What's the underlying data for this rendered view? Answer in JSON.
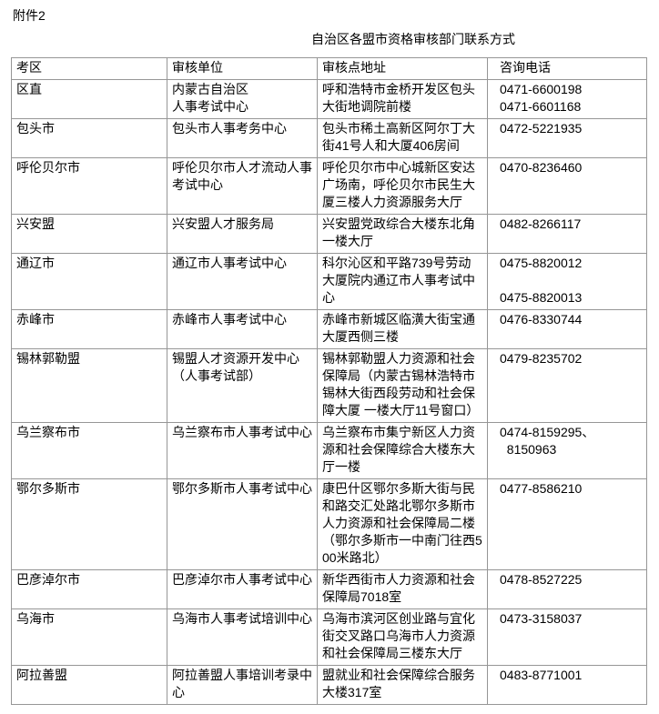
{
  "page": {
    "attachment_label": "附件2",
    "table_title": "自治区各盟市资格审核部门联系方式"
  },
  "table": {
    "headers": [
      "考区",
      "审核单位",
      "审核点地址",
      "咨询电话"
    ],
    "rows": [
      {
        "region": "区直",
        "unit": "内蒙古自治区\n人事考试中心",
        "address": "呼和浩特市金桥开发区包头大街地调院前楼",
        "phone": "0471-6600198\n0471-6601168"
      },
      {
        "region": "包头市",
        "unit": "包头市人事考务中心",
        "address": "包头市稀土高新区阿尔丁大街41号人和大厦406房间",
        "phone": "0472-5221935"
      },
      {
        "region": "呼伦贝尔市",
        "unit": "呼伦贝尔市人才流动人事考试中心",
        "address": "呼伦贝尔市中心城新区安达广场南，呼伦贝尔市民生大厦三楼人力资源服务大厅",
        "phone": "0470-8236460"
      },
      {
        "region": "兴安盟",
        "unit": "兴安盟人才服务局",
        "address": "兴安盟党政综合大楼东北角一楼大厅",
        "phone": "0482-8266117"
      },
      {
        "region": "通辽市",
        "unit": "通辽市人事考试中心",
        "address": "科尔沁区和平路739号劳动大厦院内通辽市人事考试中心",
        "phone": "0475-8820012\n\n0475-8820013"
      },
      {
        "region": "赤峰市",
        "unit": "赤峰市人事考试中心",
        "address": "赤峰市新城区临潢大街宝通大厦西侧三楼",
        "phone": "0476-8330744"
      },
      {
        "region": "锡林郭勒盟",
        "unit": "锡盟人才资源开发中心\n（人事考试部）",
        "address": "锡林郭勒盟人力资源和社会保障局（内蒙古锡林浩特市锡林大街西段劳动和社会保障大厦 一楼大厅11号窗口）",
        "phone": "0479-8235702"
      },
      {
        "region": "乌兰察布市",
        "unit": "乌兰察布市人事考试中心",
        "address": "乌兰察布市集宁新区人力资源和社会保障综合大楼东大厅一楼",
        "phone": "0474-8159295、\n  8150963"
      },
      {
        "region": "鄂尔多斯市",
        "unit": "鄂尔多斯市人事考试中心",
        "address": "康巴什区鄂尔多斯大街与民和路交汇处路北鄂尔多斯市人力资源和社会保障局二楼（鄂尔多斯市一中南门往西500米路北）",
        "phone": "0477-8586210"
      },
      {
        "region": "巴彦淖尔市",
        "unit": "巴彦淖尔市人事考试中心",
        "address": "新华西街市人力资源和社会保障局7018室",
        "phone": "0478-8527225"
      },
      {
        "region": "乌海市",
        "unit": "乌海市人事考试培训中心",
        "address": "乌海市滨河区创业路与宜化街交叉路口乌海市人力资源和社会保障局三楼东大厅",
        "phone": "0473-3158037"
      },
      {
        "region": "阿拉善盟",
        "unit": "阿拉善盟人事培训考录中心",
        "address": "盟就业和社会保障综合服务大楼317室",
        "phone": "0483-8771001"
      }
    ]
  },
  "colors": {
    "border": "#969696",
    "text": "#000000",
    "background": "#ffffff"
  }
}
